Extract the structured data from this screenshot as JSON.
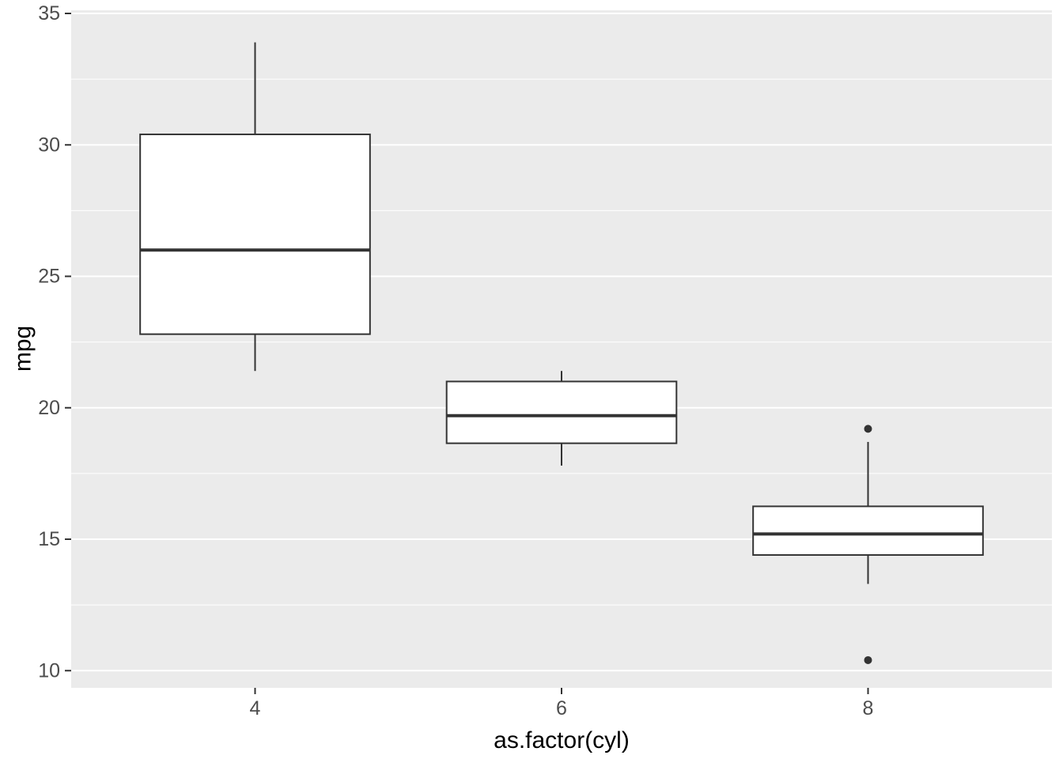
{
  "chart_data": {
    "type": "boxplot",
    "title": "",
    "xlabel": "as.factor(cyl)",
    "ylabel": "mpg",
    "categories": [
      "4",
      "6",
      "8"
    ],
    "y_ticks": [
      10,
      15,
      20,
      25,
      30,
      35
    ],
    "y_minor_ticks": [
      12.5,
      17.5,
      22.5,
      27.5,
      32.5
    ],
    "ylim": [
      9.5,
      35.1
    ],
    "grid": "major+minor",
    "legend": "none",
    "series": [
      {
        "category": "4",
        "lower_whisker": 21.4,
        "q1": 22.8,
        "median": 26.0,
        "q3": 30.4,
        "upper_whisker": 33.9,
        "outliers": []
      },
      {
        "category": "6",
        "lower_whisker": 17.8,
        "q1": 18.65,
        "median": 19.7,
        "q3": 21.0,
        "upper_whisker": 21.4,
        "outliers": []
      },
      {
        "category": "8",
        "lower_whisker": 13.3,
        "q1": 14.4,
        "median": 15.2,
        "q3": 16.25,
        "upper_whisker": 18.7,
        "outliers": [
          19.2,
          10.4
        ]
      }
    ],
    "colors": {
      "figure_background": "#FFFFFF",
      "panel_background": "#EBEBEB",
      "grid_major": "#FFFFFF",
      "grid_minor": "#FFFFFF",
      "box_fill": "#FFFFFF",
      "box_stroke": "#333333",
      "median_stroke": "#333333",
      "whisker_stroke": "#333333",
      "outlier_fill": "#333333",
      "tick_mark": "#333333",
      "axis_text": "#4D4D4D",
      "axis_title": "#000000"
    }
  }
}
